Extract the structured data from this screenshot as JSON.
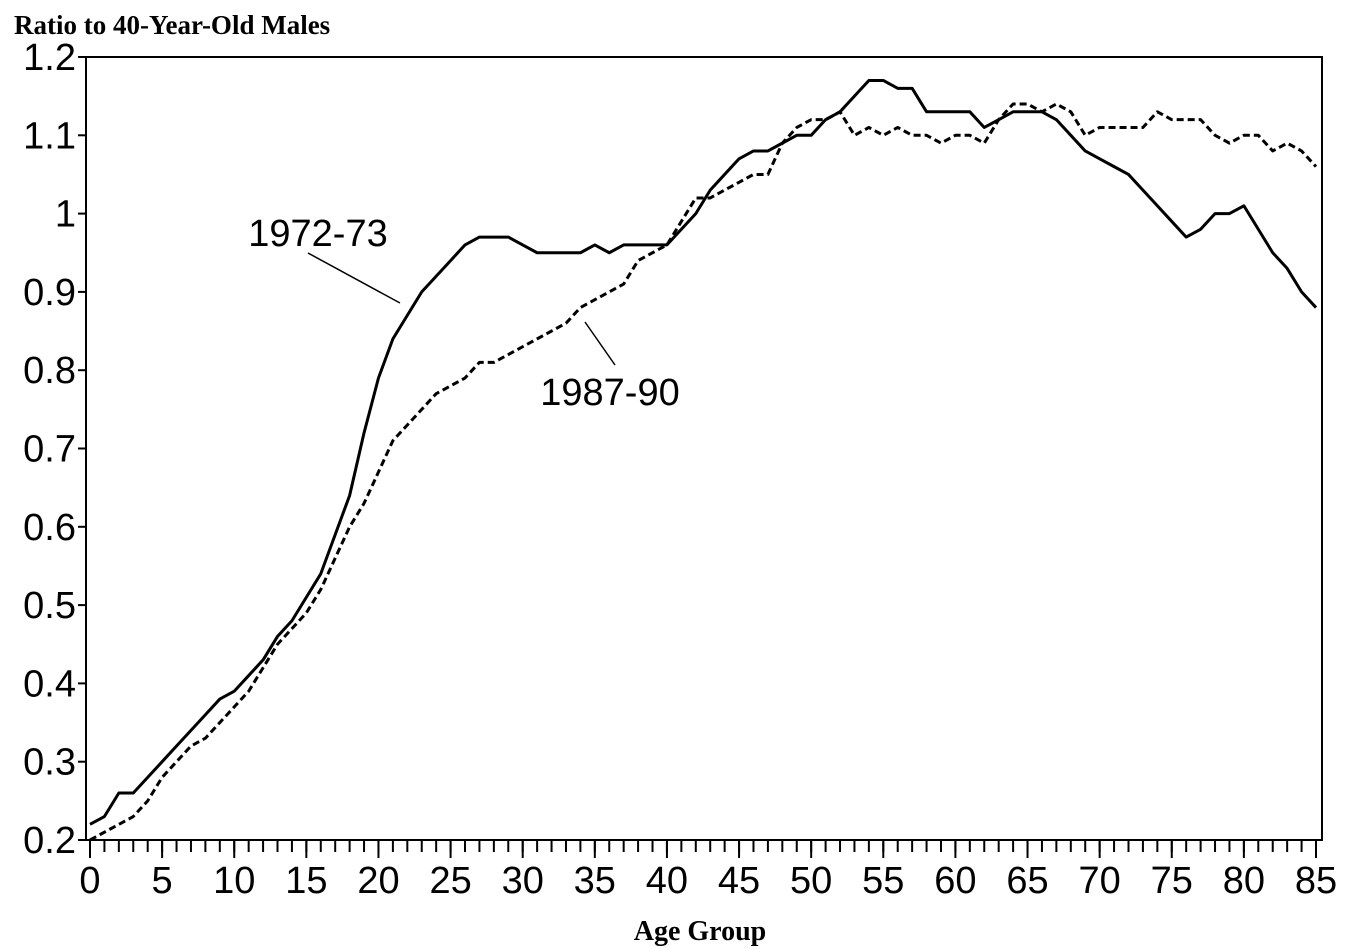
{
  "chart_data": {
    "type": "line",
    "title": "Ratio to 40-Year-Old Males",
    "x_label": "Age Group",
    "x": [
      0,
      1,
      2,
      3,
      4,
      5,
      6,
      7,
      8,
      9,
      10,
      11,
      12,
      13,
      14,
      15,
      16,
      17,
      18,
      19,
      20,
      21,
      22,
      23,
      24,
      25,
      26,
      27,
      28,
      29,
      30,
      31,
      32,
      33,
      34,
      35,
      36,
      37,
      38,
      39,
      40,
      41,
      42,
      43,
      44,
      45,
      46,
      47,
      48,
      49,
      50,
      51,
      52,
      53,
      54,
      55,
      56,
      57,
      58,
      59,
      60,
      61,
      62,
      63,
      64,
      65,
      66,
      67,
      68,
      69,
      70,
      71,
      72,
      73,
      74,
      75,
      76,
      77,
      78,
      79,
      80,
      81,
      82,
      83,
      84,
      85
    ],
    "series": [
      {
        "name": "1972-73",
        "color": "#000000",
        "line_style": "solid",
        "values": [
          0.22,
          0.23,
          0.26,
          0.26,
          0.28,
          0.3,
          0.32,
          0.34,
          0.36,
          0.38,
          0.39,
          0.41,
          0.43,
          0.46,
          0.48,
          0.51,
          0.54,
          0.59,
          0.64,
          0.72,
          0.79,
          0.84,
          0.87,
          0.9,
          0.92,
          0.94,
          0.96,
          0.97,
          0.97,
          0.97,
          0.96,
          0.95,
          0.95,
          0.95,
          0.95,
          0.96,
          0.95,
          0.96,
          0.96,
          0.96,
          0.96,
          0.98,
          1.0,
          1.03,
          1.05,
          1.07,
          1.08,
          1.08,
          1.09,
          1.1,
          1.1,
          1.12,
          1.13,
          1.15,
          1.17,
          1.17,
          1.16,
          1.16,
          1.13,
          1.13,
          1.13,
          1.13,
          1.11,
          1.12,
          1.13,
          1.13,
          1.13,
          1.12,
          1.1,
          1.08,
          1.07,
          1.06,
          1.05,
          1.03,
          1.01,
          0.99,
          0.97,
          0.98,
          1.0,
          1.0,
          1.01,
          0.98,
          0.95,
          0.93,
          0.9,
          0.88
        ]
      },
      {
        "name": "1987-90",
        "color": "#000000",
        "line_style": "dashed",
        "values": [
          0.2,
          0.21,
          0.22,
          0.23,
          0.25,
          0.28,
          0.3,
          0.32,
          0.33,
          0.35,
          0.37,
          0.39,
          0.42,
          0.45,
          0.47,
          0.49,
          0.52,
          0.56,
          0.6,
          0.63,
          0.67,
          0.71,
          0.73,
          0.75,
          0.77,
          0.78,
          0.79,
          0.81,
          0.81,
          0.82,
          0.83,
          0.84,
          0.85,
          0.86,
          0.88,
          0.89,
          0.9,
          0.91,
          0.94,
          0.95,
          0.96,
          0.99,
          1.02,
          1.02,
          1.03,
          1.04,
          1.05,
          1.05,
          1.09,
          1.11,
          1.12,
          1.12,
          1.13,
          1.1,
          1.11,
          1.1,
          1.11,
          1.1,
          1.1,
          1.09,
          1.1,
          1.1,
          1.09,
          1.12,
          1.14,
          1.14,
          1.13,
          1.14,
          1.13,
          1.1,
          1.11,
          1.11,
          1.11,
          1.11,
          1.13,
          1.12,
          1.12,
          1.12,
          1.1,
          1.09,
          1.1,
          1.1,
          1.08,
          1.09,
          1.08,
          1.06
        ]
      }
    ],
    "xlim": [
      0,
      85
    ],
    "xticks": [
      0,
      5,
      10,
      15,
      20,
      25,
      30,
      35,
      40,
      45,
      50,
      55,
      60,
      65,
      70,
      75,
      80,
      85
    ],
    "ylim": [
      0.2,
      1.2
    ],
    "yticks": [
      0.2,
      0.3,
      0.4,
      0.5,
      0.6,
      0.7,
      0.8,
      0.9,
      1,
      1.1,
      1.2
    ],
    "grid": false
  }
}
